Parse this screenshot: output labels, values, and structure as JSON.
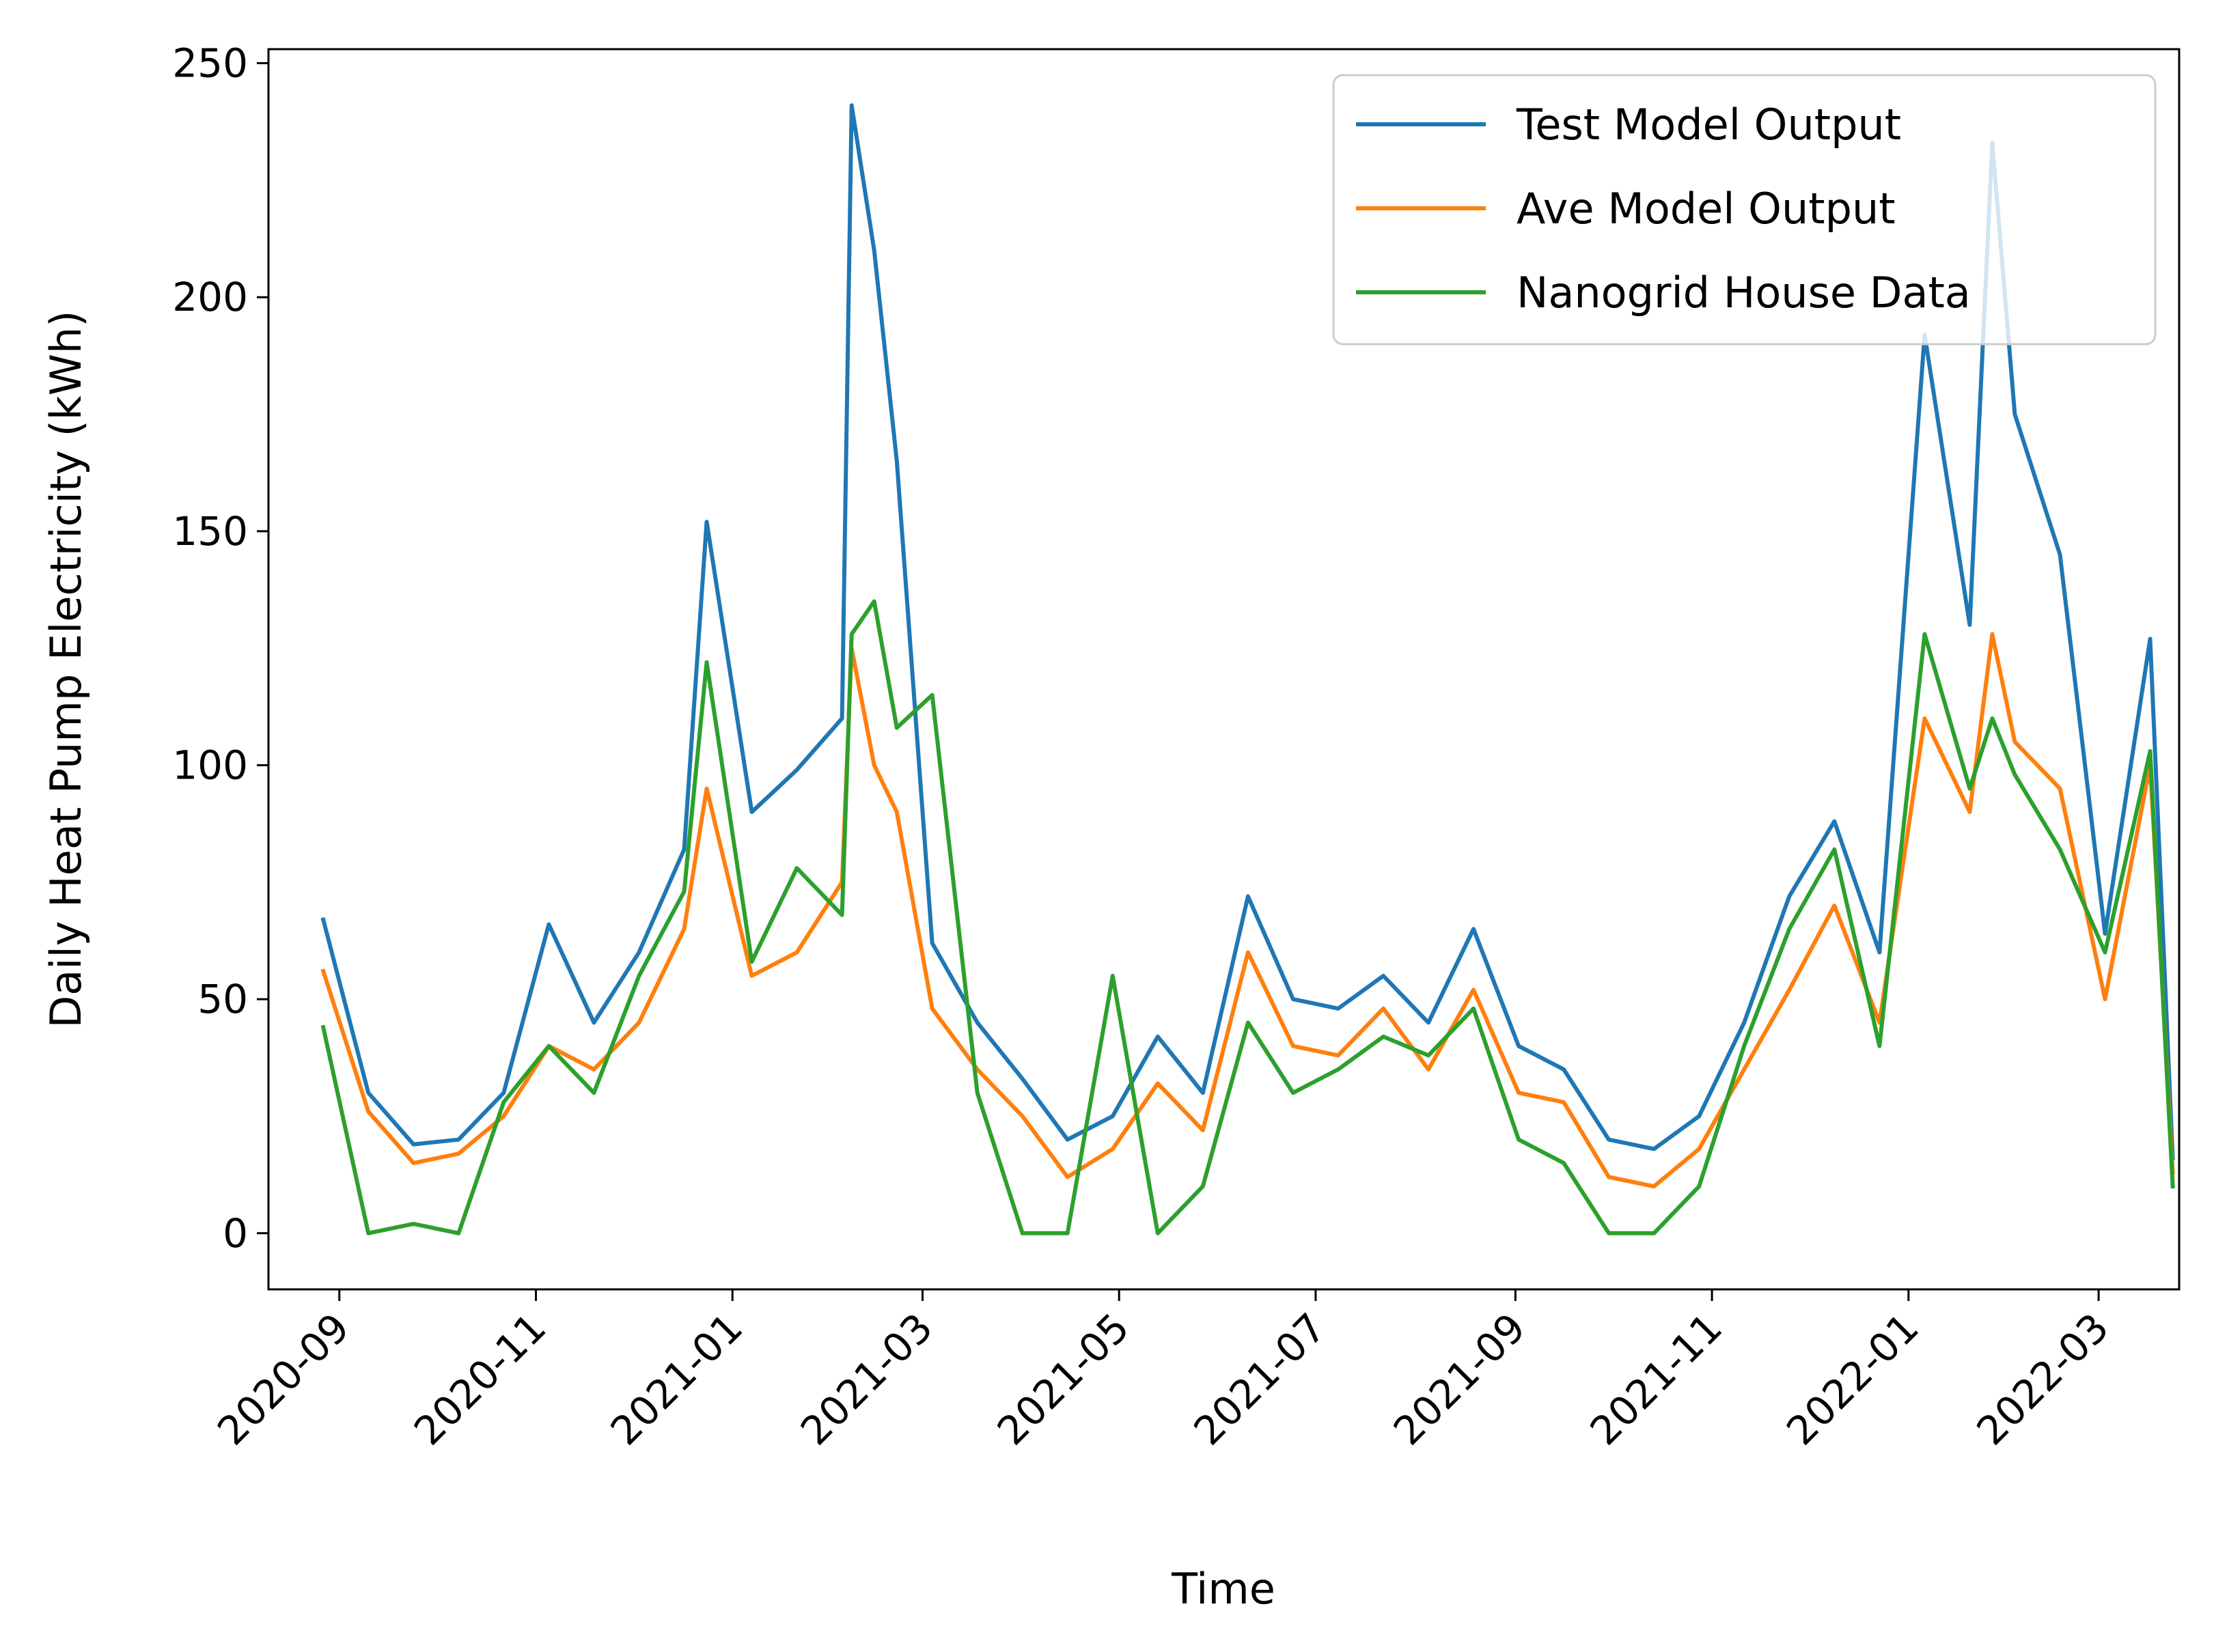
{
  "chart_data": {
    "type": "line",
    "title": "",
    "xlabel": "Time",
    "ylabel": "Daily Heat Pump Electricity (kWh)",
    "x_ticks": [
      "2020-09",
      "2020-11",
      "2021-01",
      "2021-03",
      "2021-05",
      "2021-07",
      "2021-09",
      "2021-11",
      "2022-01",
      "2022-03"
    ],
    "y_ticks": [
      0,
      50,
      100,
      150,
      200,
      250
    ],
    "ylim": [
      -12,
      253
    ],
    "xlim": [
      "2020-08-10",
      "2022-03-26"
    ],
    "grid": false,
    "legend_position": "top-right",
    "x": [
      "2020-08-27",
      "2020-09-10",
      "2020-09-24",
      "2020-10-08",
      "2020-10-22",
      "2020-11-05",
      "2020-11-19",
      "2020-12-03",
      "2020-12-17",
      "2020-12-24",
      "2021-01-07",
      "2021-01-21",
      "2021-02-04",
      "2021-02-07",
      "2021-02-14",
      "2021-02-21",
      "2021-03-04",
      "2021-03-18",
      "2021-04-01",
      "2021-04-15",
      "2021-04-29",
      "2021-05-13",
      "2021-05-27",
      "2021-06-10",
      "2021-06-24",
      "2021-07-08",
      "2021-07-22",
      "2021-08-05",
      "2021-08-19",
      "2021-09-02",
      "2021-09-16",
      "2021-09-30",
      "2021-10-14",
      "2021-10-28",
      "2021-11-11",
      "2021-11-25",
      "2021-12-09",
      "2021-12-23",
      "2022-01-06",
      "2022-01-20",
      "2022-01-27",
      "2022-02-03",
      "2022-02-17",
      "2022-03-03",
      "2022-03-17",
      "2022-03-24"
    ],
    "series": [
      {
        "name": "Test Model Output",
        "color": "#1f77b4",
        "values": [
          67,
          30,
          19,
          20,
          30,
          66,
          45,
          60,
          82,
          152,
          90,
          99,
          110,
          241,
          210,
          165,
          62,
          45,
          33,
          20,
          25,
          42,
          30,
          72,
          50,
          48,
          55,
          45,
          65,
          40,
          35,
          20,
          18,
          25,
          45,
          72,
          88,
          60,
          192,
          130,
          233,
          175,
          145,
          64,
          127,
          16
        ]
      },
      {
        "name": "Ave Model Output",
        "color": "#ff7f0e",
        "values": [
          56,
          26,
          15,
          17,
          25,
          40,
          35,
          45,
          65,
          95,
          55,
          60,
          75,
          125,
          100,
          90,
          48,
          35,
          25,
          12,
          18,
          32,
          22,
          60,
          40,
          38,
          48,
          35,
          52,
          30,
          28,
          12,
          10,
          18,
          35,
          52,
          70,
          45,
          110,
          90,
          128,
          105,
          95,
          50,
          100,
          13
        ]
      },
      {
        "name": "Nanogrid House Data",
        "color": "#2ca02c",
        "values": [
          44,
          0,
          2,
          0,
          28,
          40,
          30,
          55,
          73,
          122,
          58,
          78,
          68,
          128,
          135,
          108,
          115,
          30,
          0,
          0,
          55,
          0,
          10,
          45,
          30,
          35,
          42,
          38,
          48,
          20,
          15,
          0,
          0,
          10,
          40,
          65,
          82,
          40,
          128,
          95,
          110,
          98,
          82,
          60,
          103,
          10
        ]
      }
    ]
  }
}
